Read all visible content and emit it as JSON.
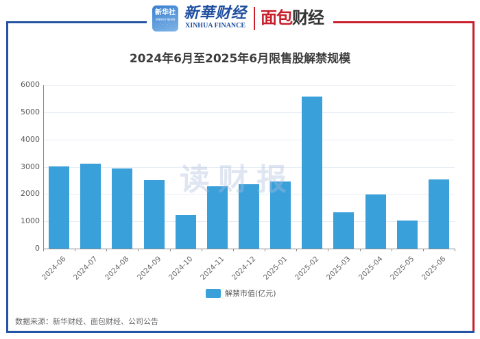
{
  "header": {
    "logo_app_text": "新华社",
    "logo_app_sub": "XINHUA NEWS",
    "logo_xinhua_cn": "新華财经",
    "logo_xinhua_en": "XINHUA FINANCE",
    "logo_mianbao_red": "面包",
    "logo_mianbao_dark": "财经"
  },
  "watermark": "读财报",
  "colors": {
    "bar": "#39a0da",
    "frame_blue": "#2453a5",
    "frame_red": "#c81f2b"
  },
  "legend": {
    "label": "解禁市值(亿元)"
  },
  "source": "数据来源：新华财经、面包财经、公司公告",
  "chart_data": {
    "type": "bar",
    "title": "2024年6月至2025年6月限售股解禁规模",
    "xlabel": "",
    "ylabel": "",
    "ylim": [
      0,
      6000
    ],
    "yticks": [
      0,
      1000,
      2000,
      3000,
      4000,
      5000,
      6000
    ],
    "grid": true,
    "legend_position": "bottom",
    "categories": [
      "2024-06",
      "2024-07",
      "2024-08",
      "2024-09",
      "2024-10",
      "2024-11",
      "2024-12",
      "2025-01",
      "2025-02",
      "2025-03",
      "2025-04",
      "2025-05",
      "2025-06"
    ],
    "series": [
      {
        "name": "解禁市值(亿元)",
        "values": [
          3010,
          3110,
          2940,
          2510,
          1230,
          2290,
          2360,
          2460,
          5570,
          1330,
          1990,
          1030,
          2540
        ]
      }
    ]
  }
}
